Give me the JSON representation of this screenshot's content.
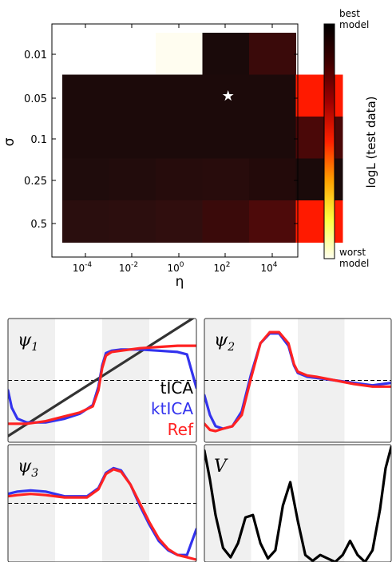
{
  "chart_data": [
    {
      "type": "heatmap",
      "xlabel": "η",
      "ylabel": "σ",
      "x_ticks": [
        {
          "base": "10",
          "exp": "-4"
        },
        {
          "base": "10",
          "exp": "-2"
        },
        {
          "base": "10",
          "exp": "0"
        },
        {
          "base": "10",
          "exp": "2"
        },
        {
          "base": "10",
          "exp": "4"
        }
      ],
      "y_ticks": [
        "0.01",
        "0.05",
        "0.1",
        "0.25",
        "0.5"
      ],
      "colorbar": {
        "label": "logL (test data)",
        "top_label": [
          "best",
          "model"
        ],
        "bottom_label": [
          "worst",
          "model"
        ],
        "stops": [
          "#fffff0",
          "#ffff40",
          "#ffa000",
          "#ff2000",
          "#a00000",
          "#400000",
          "#000000"
        ]
      },
      "cells": [
        [
          null,
          null,
          "#fffdf0",
          "#1a0a0a",
          "#3a0a0a",
          null
        ],
        [
          "#1c0a0a",
          "#1c0a0a",
          "#1c0a0a",
          "#1c0a0a",
          "#1c0a0a",
          "#ff1a00"
        ],
        [
          "#1c0a0a",
          "#1c0a0a",
          "#1c0a0a",
          "#1c0a0a",
          "#1c0a0a",
          "#4a0808"
        ],
        [
          "#1f0c0c",
          "#220c0c",
          "#260c0c",
          "#280c0c",
          "#230a0a",
          "#1a0a0a"
        ],
        [
          "#2a0e0e",
          "#2c0e0e",
          "#300e0e",
          "#3a0a0a",
          "#4d0a0a",
          "#ff1a00"
        ]
      ],
      "star": {
        "row": 1,
        "col": 4,
        "symbol": "★"
      }
    },
    {
      "type": "line",
      "panels": [
        {
          "label": "ψ",
          "subscript": "1",
          "legend": [
            "tICA",
            "ktICA",
            "Ref"
          ],
          "series": [
            {
              "name": "tICA",
              "color": "#333333",
              "x": [
                0,
                1
              ],
              "y": [
                0.05,
                1.02
              ]
            },
            {
              "name": "ktICA",
              "color": "#3333ee",
              "x": [
                0,
                0.02,
                0.05,
                0.1,
                0.2,
                0.3,
                0.38,
                0.45,
                0.48,
                0.5,
                0.52,
                0.55,
                0.6,
                0.7,
                0.8,
                0.9,
                0.95,
                1
              ],
              "y": [
                0.42,
                0.28,
                0.19,
                0.16,
                0.16,
                0.19,
                0.23,
                0.3,
                0.45,
                0.62,
                0.72,
                0.74,
                0.75,
                0.75,
                0.74,
                0.73,
                0.71,
                0.44
              ]
            },
            {
              "name": "Ref",
              "color": "#ff2222",
              "x": [
                0,
                0.05,
                0.1,
                0.2,
                0.3,
                0.38,
                0.45,
                0.48,
                0.5,
                0.52,
                0.55,
                0.6,
                0.7,
                0.8,
                0.9,
                1
              ],
              "y": [
                0.15,
                0.15,
                0.15,
                0.17,
                0.21,
                0.24,
                0.29,
                0.42,
                0.6,
                0.7,
                0.73,
                0.74,
                0.76,
                0.77,
                0.78,
                0.78
              ]
            }
          ]
        },
        {
          "label": "ψ",
          "subscript": "2",
          "series": [
            {
              "name": "ktICA",
              "color": "#3333ee",
              "x": [
                0,
                0.03,
                0.06,
                0.1,
                0.15,
                0.2,
                0.25,
                0.3,
                0.35,
                0.4,
                0.45,
                0.48,
                0.5,
                0.55,
                0.6,
                0.7,
                0.8,
                0.9,
                1
              ],
              "y": [
                0.38,
                0.22,
                0.13,
                0.11,
                0.13,
                0.25,
                0.55,
                0.8,
                0.88,
                0.88,
                0.78,
                0.62,
                0.56,
                0.53,
                0.52,
                0.5,
                0.48,
                0.46,
                0.48
              ]
            },
            {
              "name": "Ref",
              "color": "#ff2222",
              "x": [
                0,
                0.03,
                0.06,
                0.1,
                0.15,
                0.2,
                0.25,
                0.3,
                0.35,
                0.4,
                0.45,
                0.48,
                0.5,
                0.55,
                0.6,
                0.7,
                0.8,
                0.9,
                1
              ],
              "y": [
                0.15,
                0.1,
                0.09,
                0.11,
                0.13,
                0.22,
                0.52,
                0.8,
                0.89,
                0.89,
                0.8,
                0.63,
                0.57,
                0.54,
                0.53,
                0.5,
                0.47,
                0.45,
                0.45
              ]
            }
          ]
        },
        {
          "label": "ψ",
          "subscript": "3",
          "series": [
            {
              "name": "ktICA",
              "color": "#3333ee",
              "x": [
                0,
                0.05,
                0.12,
                0.2,
                0.3,
                0.42,
                0.48,
                0.52,
                0.56,
                0.6,
                0.65,
                0.7,
                0.75,
                0.8,
                0.85,
                0.9,
                0.95,
                1
              ],
              "y": [
                0.58,
                0.6,
                0.61,
                0.6,
                0.56,
                0.56,
                0.63,
                0.76,
                0.8,
                0.78,
                0.66,
                0.48,
                0.32,
                0.18,
                0.1,
                0.06,
                0.06,
                0.28
              ]
            },
            {
              "name": "Ref",
              "color": "#ff2222",
              "x": [
                0,
                0.05,
                0.12,
                0.2,
                0.3,
                0.42,
                0.48,
                0.52,
                0.56,
                0.6,
                0.65,
                0.7,
                0.75,
                0.8,
                0.85,
                0.9,
                0.95,
                1
              ],
              "y": [
                0.56,
                0.57,
                0.58,
                0.57,
                0.55,
                0.55,
                0.62,
                0.75,
                0.79,
                0.77,
                0.66,
                0.5,
                0.34,
                0.2,
                0.11,
                0.06,
                0.04,
                0.02
              ]
            }
          ]
        },
        {
          "label": "V",
          "series": [
            {
              "name": "V",
              "color": "#000000",
              "x": [
                0,
                0.03,
                0.06,
                0.1,
                0.14,
                0.18,
                0.22,
                0.26,
                0.3,
                0.34,
                0.38,
                0.42,
                0.46,
                0.5,
                0.54,
                0.58,
                0.62,
                0.66,
                0.7,
                0.74,
                0.78,
                0.82,
                0.86,
                0.9,
                0.94,
                0.97,
                1
              ],
              "y": [
                0.95,
                0.7,
                0.4,
                0.12,
                0.04,
                0.16,
                0.38,
                0.4,
                0.16,
                0.03,
                0.1,
                0.48,
                0.68,
                0.35,
                0.06,
                0.01,
                0.06,
                0.03,
                0.0,
                0.06,
                0.18,
                0.06,
                0.0,
                0.1,
                0.45,
                0.8,
                0.98
              ]
            }
          ]
        }
      ]
    }
  ]
}
